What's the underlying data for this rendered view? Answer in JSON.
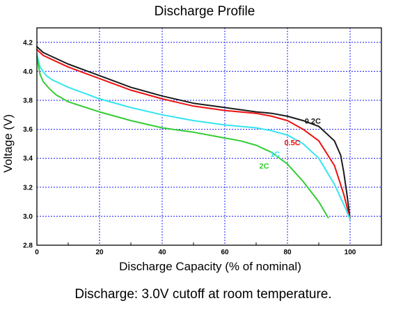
{
  "chart_data": {
    "type": "line",
    "title": "Discharge Profile",
    "xlabel": "Discharge Capacity (% of nominal)",
    "ylabel": "Voltage (V)",
    "xlim": [
      0,
      110
    ],
    "ylim": [
      2.8,
      4.3
    ],
    "x_ticks": [
      0,
      20,
      40,
      60,
      80,
      100
    ],
    "y_ticks": [
      2.8,
      3.0,
      3.2,
      3.4,
      3.6,
      3.8,
      4.0,
      4.2
    ],
    "x_tick_labels": [
      "0",
      "20",
      "40",
      "60",
      "80",
      "100"
    ],
    "y_tick_labels": [
      "2.8",
      "3.0",
      "3.2",
      "3.4",
      "3.6",
      "3.8",
      "4.0",
      "4.2"
    ],
    "grid": true,
    "series": [
      {
        "name": "0.2C",
        "color": "#1a1a1a",
        "x": [
          0,
          2,
          5,
          10,
          20,
          30,
          40,
          50,
          60,
          70,
          75,
          80,
          85,
          90,
          95,
          97,
          98,
          99,
          100
        ],
        "y": [
          4.17,
          4.13,
          4.1,
          4.05,
          3.97,
          3.89,
          3.83,
          3.78,
          3.75,
          3.72,
          3.71,
          3.69,
          3.66,
          3.62,
          3.52,
          3.42,
          3.3,
          3.15,
          2.98
        ]
      },
      {
        "name": "0.5C",
        "color": "#ee1111",
        "x": [
          0,
          2,
          5,
          10,
          20,
          30,
          40,
          50,
          60,
          70,
          75,
          80,
          85,
          90,
          95,
          98,
          100
        ],
        "y": [
          4.15,
          4.11,
          4.08,
          4.03,
          3.95,
          3.87,
          3.81,
          3.76,
          3.73,
          3.71,
          3.69,
          3.66,
          3.6,
          3.52,
          3.35,
          3.15,
          2.98
        ]
      },
      {
        "name": "1C",
        "color": "#33e5f0",
        "x": [
          0,
          1,
          3,
          5,
          10,
          20,
          30,
          40,
          50,
          60,
          70,
          75,
          80,
          85,
          90,
          95,
          98,
          100
        ],
        "y": [
          4.12,
          4.03,
          3.97,
          3.94,
          3.89,
          3.81,
          3.75,
          3.7,
          3.66,
          3.63,
          3.61,
          3.59,
          3.56,
          3.5,
          3.4,
          3.22,
          3.08,
          2.98
        ]
      },
      {
        "name": "2C",
        "color": "#33cc33",
        "x": [
          0,
          1,
          2,
          4,
          6,
          10,
          20,
          30,
          40,
          50,
          60,
          65,
          70,
          75,
          80,
          85,
          90,
          93
        ],
        "y": [
          4.1,
          3.98,
          3.93,
          3.88,
          3.84,
          3.79,
          3.72,
          3.66,
          3.61,
          3.58,
          3.54,
          3.52,
          3.49,
          3.44,
          3.36,
          3.24,
          3.1,
          2.99
        ]
      }
    ],
    "annotations": [
      {
        "text": "0.2C",
        "x": 85.5,
        "y": 3.64,
        "color": "#1a1a1a"
      },
      {
        "text": "0.5C",
        "x": 79,
        "y": 3.49,
        "color": "#ee1111"
      },
      {
        "text": "1C",
        "x": 74.5,
        "y": 3.41,
        "color": "#33e5f0"
      },
      {
        "text": "2C",
        "x": 71,
        "y": 3.33,
        "color": "#33cc33"
      }
    ],
    "caption": "Discharge: 3.0V cutoff at room temperature."
  }
}
